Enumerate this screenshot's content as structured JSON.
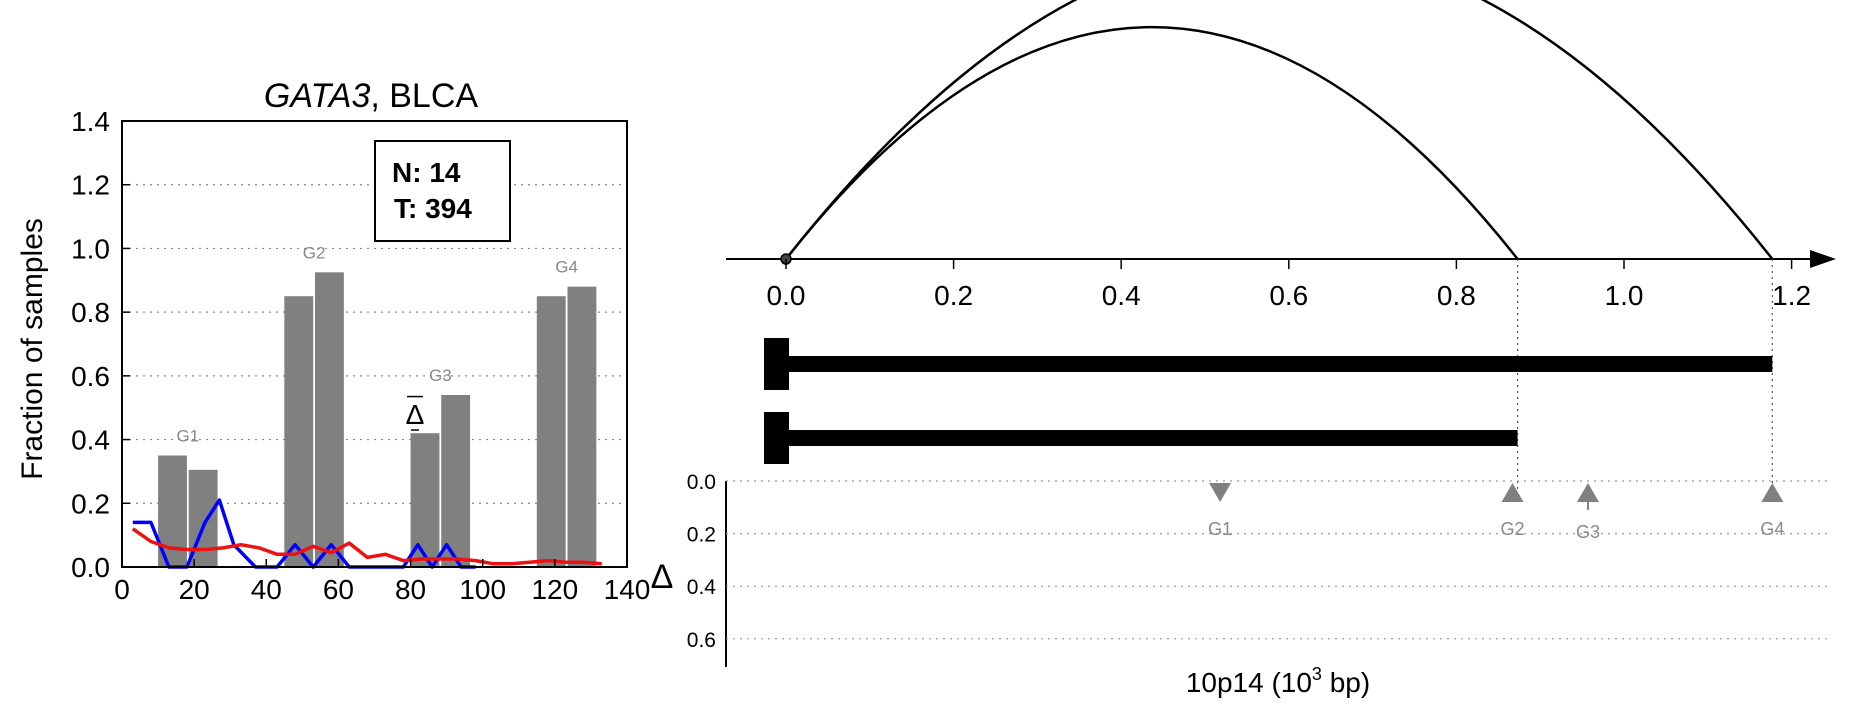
{
  "chart_data": [
    {
      "type": "bar",
      "title_gene": "GATA3",
      "title_rest": ", BLCA",
      "ylabel": "Fraction of samples",
      "xlim": [
        0,
        140
      ],
      "ylim": [
        0,
        1.4
      ],
      "x_ticks": [
        0,
        20,
        40,
        60,
        80,
        100,
        120,
        140
      ],
      "y_ticks": [
        0.0,
        0.2,
        0.4,
        0.6,
        0.8,
        1.0,
        1.2,
        1.4
      ],
      "grid": "horizontal dotted",
      "counts_box": {
        "n_label": "N: 14",
        "t_label": "T: 394"
      },
      "colors": {
        "bars": "#808080",
        "series_blue": "#0000ff",
        "series_red": "#ee1111"
      },
      "bar_groups": [
        {
          "label": "G1",
          "bars": [
            {
              "x": 14,
              "value": 0.35
            },
            {
              "x": 22.5,
              "value": 0.305
            }
          ]
        },
        {
          "label": "G2",
          "bars": [
            {
              "x": 49,
              "value": 0.85
            },
            {
              "x": 57.5,
              "value": 0.925
            }
          ]
        },
        {
          "label": "G3",
          "bars": [
            {
              "x": 84,
              "value": 0.42
            },
            {
              "x": 92.5,
              "value": 0.54
            }
          ]
        },
        {
          "label": "G4",
          "bars": [
            {
              "x": 119,
              "value": 0.85
            },
            {
              "x": 127.5,
              "value": 0.88
            }
          ]
        }
      ],
      "delta_marker": {
        "label": "Δ",
        "x": 84,
        "upper": 0.535,
        "lower": 0.43
      },
      "series": [
        {
          "color": "#0000ff",
          "x": [
            3,
            8,
            13,
            18,
            23,
            27,
            31,
            37,
            43,
            48,
            53,
            58,
            63,
            68,
            73,
            78,
            82,
            86,
            90,
            94,
            98
          ],
          "y": [
            0.14,
            0.14,
            0.0,
            0.0,
            0.14,
            0.21,
            0.07,
            0.0,
            0.0,
            0.07,
            0.0,
            0.07,
            0.0,
            0.0,
            0.0,
            0.0,
            0.07,
            0.0,
            0.07,
            0.0,
            0.0
          ]
        },
        {
          "color": "#ee1111",
          "x": [
            3,
            8,
            13,
            18,
            23,
            28,
            33,
            38,
            43,
            48,
            53,
            58,
            63,
            68,
            73,
            78,
            83,
            88,
            93,
            98,
            103,
            108,
            113,
            118,
            123,
            128,
            133
          ],
          "y": [
            0.12,
            0.08,
            0.06,
            0.055,
            0.055,
            0.06,
            0.07,
            0.06,
            0.04,
            0.04,
            0.065,
            0.045,
            0.075,
            0.03,
            0.04,
            0.02,
            0.025,
            0.025,
            0.025,
            0.02,
            0.01,
            0.01,
            0.015,
            0.02,
            0.015,
            0.015,
            0.01
          ]
        }
      ]
    },
    {
      "type": "genomic-track",
      "xlabel_prefix": "10p14 (10",
      "xlabel_exponent": "3",
      "xlabel_suffix": " bp)",
      "x_ticks": [
        0.0,
        0.2,
        0.4,
        0.6,
        0.8,
        1.0,
        1.2
      ],
      "x_tick_labels": [
        "0.0",
        "0.2",
        "0.4",
        "0.6",
        "0.8",
        "1.0",
        "1.2"
      ],
      "xlim": [
        0,
        1.24
      ],
      "arcs": [
        {
          "from": 0.0,
          "to": 0.873
        },
        {
          "from": 0.0,
          "to": 1.177
        }
      ],
      "transcripts": [
        {
          "start": 0.0,
          "end": 1.177
        },
        {
          "start": 0.0,
          "end": 0.873
        }
      ],
      "delta_axis_label": "Δ",
      "delta_ticks": [
        0.0,
        0.2,
        0.4,
        0.6
      ],
      "delta_ylim": [
        0,
        0.7
      ],
      "markers": [
        {
          "label": "G1",
          "x": 0.518,
          "direction": "down",
          "delta": 0.0
        },
        {
          "label": "G2",
          "x": 0.867,
          "direction": "up",
          "delta": 0.0
        },
        {
          "label": "G3",
          "x": 0.957,
          "direction": "up",
          "delta": 0.11
        },
        {
          "label": "G4",
          "x": 1.177,
          "direction": "up",
          "delta": 0.0
        }
      ],
      "colors": {
        "marker": "#808080",
        "line": "#000000"
      }
    }
  ]
}
